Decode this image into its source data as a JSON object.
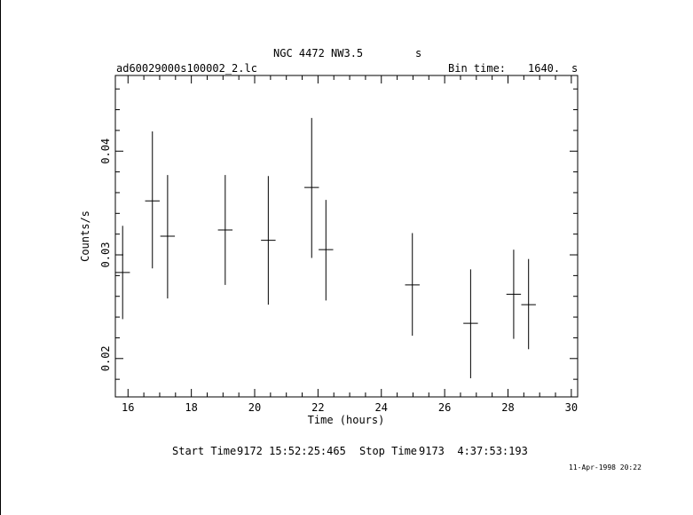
{
  "header": {
    "object_title": "NGC 4472 NW3.5",
    "object_unit": "s",
    "filename": "ad60029000s100002_2.lc",
    "bin_time_label": "Bin time:",
    "bin_time_value": "1640.",
    "bin_time_unit": "s"
  },
  "footer": {
    "start_label": "Start Time",
    "start_value": "9172 15:52:25:465",
    "stop_label": "Stop Time",
    "stop_value": "9173  4:37:53:193",
    "date_stamp": "11-Apr-1998 20:22"
  },
  "chart_data": {
    "type": "scatter",
    "title": "NGC 4472 NW3.5",
    "xlabel": "Time (hours)",
    "ylabel": "Counts/s",
    "xlim": [
      15.6,
      30.2
    ],
    "ylim": [
      0.0163,
      0.0473
    ],
    "xticks": [
      16,
      18,
      20,
      22,
      24,
      26,
      28,
      30
    ],
    "yticks": [
      0.02,
      0.03,
      0.04
    ],
    "ytick_labels": [
      "0.02",
      "0.03",
      "0.04"
    ],
    "grid": false,
    "points": [
      {
        "x": 15.83,
        "y": 0.0283,
        "xerr": 0.23,
        "ylo": 0.0238,
        "yhi": 0.0328
      },
      {
        "x": 16.77,
        "y": 0.0352,
        "xerr": 0.23,
        "ylo": 0.0287,
        "yhi": 0.0419
      },
      {
        "x": 17.25,
        "y": 0.0318,
        "xerr": 0.23,
        "ylo": 0.0258,
        "yhi": 0.0377
      },
      {
        "x": 19.07,
        "y": 0.0324,
        "xerr": 0.23,
        "ylo": 0.0271,
        "yhi": 0.0377
      },
      {
        "x": 20.43,
        "y": 0.0314,
        "xerr": 0.23,
        "ylo": 0.0252,
        "yhi": 0.0376
      },
      {
        "x": 21.8,
        "y": 0.0365,
        "xerr": 0.23,
        "ylo": 0.0297,
        "yhi": 0.0432
      },
      {
        "x": 22.25,
        "y": 0.0305,
        "xerr": 0.23,
        "ylo": 0.0256,
        "yhi": 0.0353
      },
      {
        "x": 24.98,
        "y": 0.0271,
        "xerr": 0.23,
        "ylo": 0.0222,
        "yhi": 0.0321
      },
      {
        "x": 26.82,
        "y": 0.0234,
        "xerr": 0.23,
        "ylo": 0.0181,
        "yhi": 0.0286
      },
      {
        "x": 28.18,
        "y": 0.0262,
        "xerr": 0.23,
        "ylo": 0.0219,
        "yhi": 0.0305
      },
      {
        "x": 28.65,
        "y": 0.0252,
        "xerr": 0.23,
        "ylo": 0.0209,
        "yhi": 0.0296
      }
    ]
  }
}
